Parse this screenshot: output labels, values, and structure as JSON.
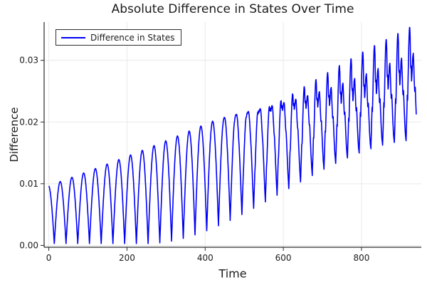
{
  "chart_data": {
    "type": "line",
    "title": "Absolute Difference in States Over Time",
    "xlabel": "Time",
    "ylabel": "Difference",
    "xlim": [
      -12,
      953
    ],
    "ylim": [
      -0.0003,
      0.0362
    ],
    "xticks": {
      "values": [
        0,
        200,
        400,
        600,
        800
      ],
      "labels": [
        "0",
        "200",
        "400",
        "600",
        "800"
      ]
    },
    "yticks": {
      "values": [
        0,
        0.01,
        0.02,
        0.03
      ],
      "labels": [
        "0.00",
        "0.01",
        "0.02",
        "0.03"
      ]
    },
    "grid": true,
    "style": {
      "background": "#ffffff",
      "grid_color": "#e9e9e9",
      "axis_color": "#2a2a2a",
      "text_color": "#1a1a1a",
      "line_color": "#0000f5",
      "line_width": 1.6
    },
    "legend": {
      "position": "top-left",
      "entries": [
        {
          "label": "Difference in States",
          "color": "#0000f5"
        }
      ]
    },
    "series": [
      {
        "name": "Difference in States",
        "color": "#0000f5",
        "t_start": 0,
        "t_end": 940,
        "dt": 0.5,
        "period": 30,
        "trough_phase_t": 14,
        "envelope": {
          "trough": {
            "base": 0.0003,
            "rise": 0.0168,
            "t0": 250,
            "span": 700
          },
          "peak": {
            "c0": 0.0097,
            "c1": 2.25e-05,
            "c2": 6e-09
          }
        },
        "wiggle": {
          "t0": 400,
          "span": 450
        },
        "profile_smooth": [
          [
            0,
            0
          ],
          [
            0.05,
            0.156
          ],
          [
            0.1,
            0.309
          ],
          [
            0.15,
            0.454
          ],
          [
            0.2,
            0.588
          ],
          [
            0.25,
            0.707
          ],
          [
            0.3,
            0.809
          ],
          [
            0.35,
            0.891
          ],
          [
            0.4,
            0.951
          ],
          [
            0.45,
            0.988
          ],
          [
            0.5,
            1.0
          ],
          [
            0.55,
            0.988
          ],
          [
            0.6,
            0.951
          ],
          [
            0.65,
            0.891
          ],
          [
            0.7,
            0.809
          ],
          [
            0.75,
            0.707
          ],
          [
            0.8,
            0.588
          ],
          [
            0.85,
            0.454
          ],
          [
            0.9,
            0.309
          ],
          [
            0.95,
            0.156
          ],
          [
            1,
            0
          ]
        ],
        "profile_wiggly": [
          [
            0,
            0
          ],
          [
            0.06,
            0.22
          ],
          [
            0.1,
            0.4
          ],
          [
            0.13,
            0.34
          ],
          [
            0.17,
            0.52
          ],
          [
            0.22,
            0.78
          ],
          [
            0.27,
            0.95
          ],
          [
            0.31,
            1.0
          ],
          [
            0.35,
            0.9
          ],
          [
            0.39,
            0.62
          ],
          [
            0.43,
            0.66
          ],
          [
            0.47,
            0.5
          ],
          [
            0.52,
            0.6
          ],
          [
            0.57,
            0.72
          ],
          [
            0.62,
            0.75
          ],
          [
            0.66,
            0.64
          ],
          [
            0.7,
            0.5
          ],
          [
            0.74,
            0.4
          ],
          [
            0.78,
            0.46
          ],
          [
            0.83,
            0.32
          ],
          [
            0.88,
            0.18
          ],
          [
            0.94,
            0.06
          ],
          [
            1,
            0
          ]
        ]
      }
    ]
  }
}
